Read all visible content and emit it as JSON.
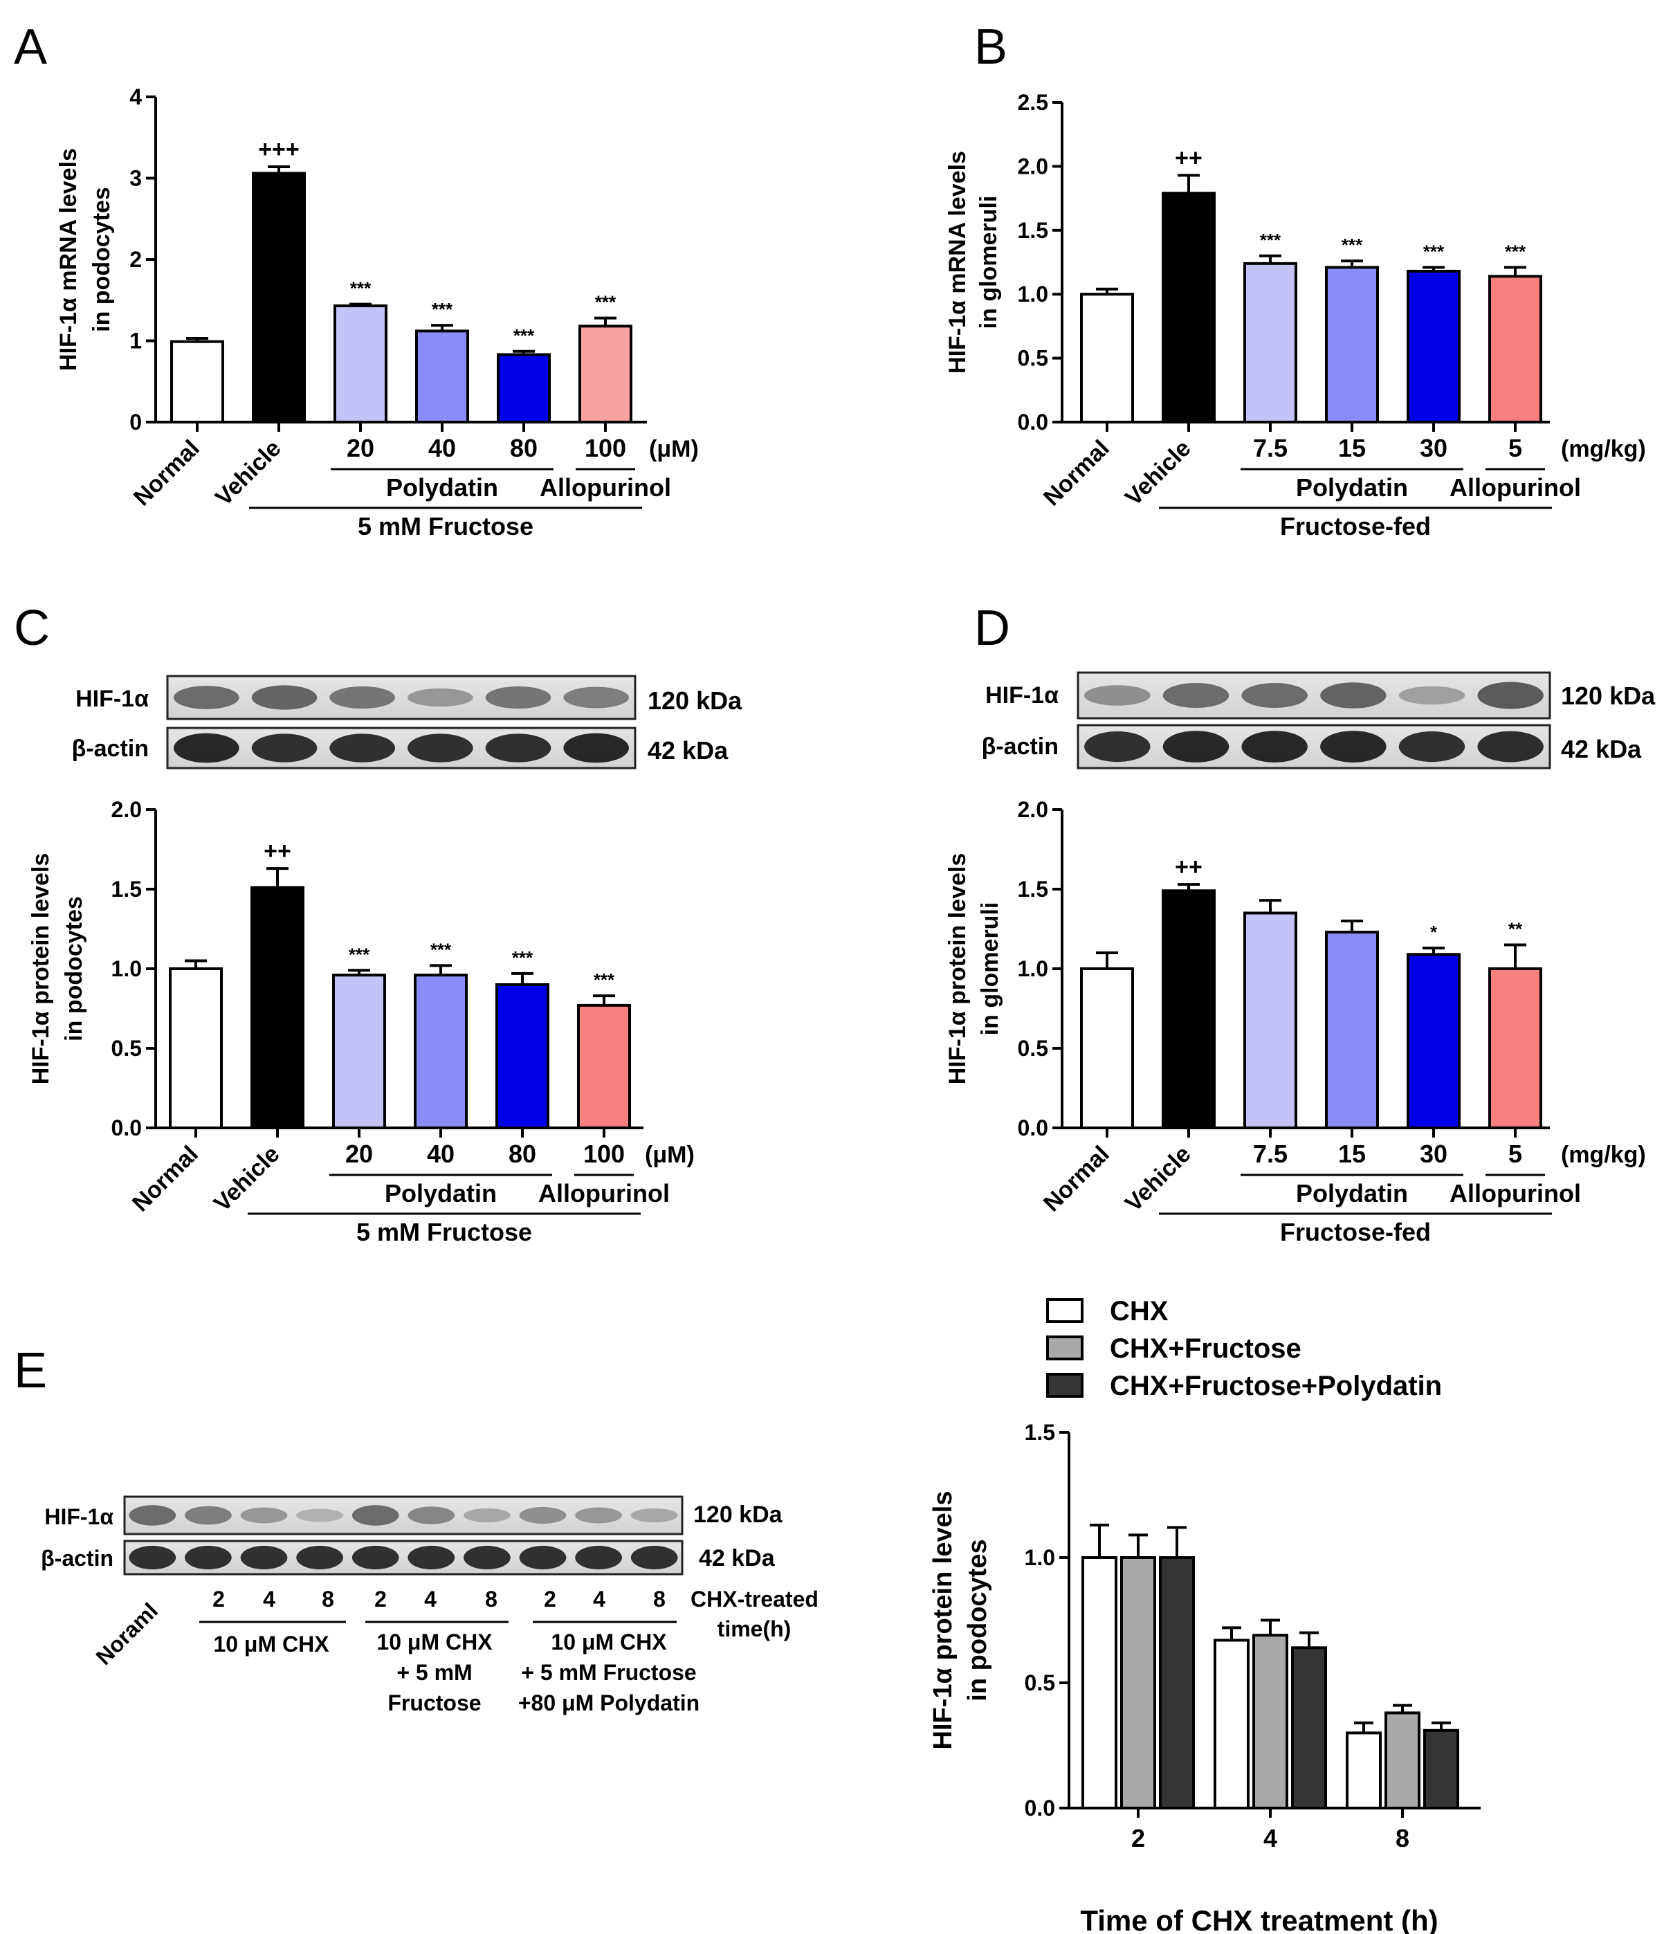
{
  "figure": {
    "panel_A": {
      "letter": "A",
      "chart_ref": 0,
      "doses": [
        "20",
        "40",
        "80",
        "100"
      ],
      "unit": "(μM)",
      "group1": "Polydatin",
      "group2": "Allopurinol",
      "treatment": "5 mM Fructose"
    },
    "panel_B": {
      "letter": "B",
      "chart_ref": 1,
      "doses": [
        "7.5",
        "15",
        "30",
        "5"
      ],
      "unit": "(mg/kg)",
      "group1": "Polydatin",
      "group2": "Allopurinol",
      "treatment": "Fructose-fed"
    },
    "panel_C": {
      "letter": "C",
      "chart_ref": 2,
      "blot_labels": [
        "HIF-1α",
        "β-actin"
      ],
      "blot_sizes": [
        "120 kDa",
        "42 kDa"
      ],
      "doses": [
        "20",
        "40",
        "80",
        "100"
      ],
      "unit": "(μM)",
      "group1": "Polydatin",
      "group2": "Allopurinol",
      "treatment": "5 mM Fructose"
    },
    "panel_D": {
      "letter": "D",
      "chart_ref": 3,
      "blot_labels": [
        "HIF-1α",
        "β-actin"
      ],
      "blot_sizes": [
        "120 kDa",
        "42 kDa"
      ],
      "doses": [
        "7.5",
        "15",
        "30",
        "5"
      ],
      "unit": "(mg/kg)",
      "group1": "Polydatin",
      "group2": "Allopurinol",
      "treatment": "Fructose-fed"
    },
    "panel_E": {
      "letter": "E",
      "chart_ref": 4,
      "blot_labels": [
        "HIF-1α",
        "β-actin"
      ],
      "blot_sizes": [
        "120 kDa",
        "42 kDa"
      ],
      "normal_label": "Noraml",
      "time_labels": [
        "2",
        "4",
        "8",
        "2",
        "4",
        "8",
        "2",
        "4",
        "8"
      ],
      "time_caption": [
        "CHX-treated",
        "time(h)"
      ],
      "group1": [
        "10 μM CHX"
      ],
      "group2": [
        "10 μM CHX",
        "+ 5 mM",
        "Fructose"
      ],
      "group3": [
        "10 μM CHX",
        "+ 5 mM Fructose",
        "+80 μM Polydatin"
      ]
    }
  },
  "chart_data": [
    {
      "type": "bar",
      "title": "",
      "ylabel": [
        "HIF-1α mRNA levels",
        "in podocytes"
      ],
      "ylim": [
        0,
        4
      ],
      "yticks": [
        "0",
        "1",
        "2",
        "3",
        "4"
      ],
      "categories": [
        "Normal",
        "Vehicle",
        "20",
        "40",
        "80",
        "100"
      ],
      "values": [
        0.99,
        3.06,
        1.43,
        1.12,
        0.83,
        1.18
      ],
      "errors": [
        0.04,
        0.08,
        0.02,
        0.07,
        0.04,
        0.1
      ],
      "annotations": [
        "",
        "+++",
        "***",
        "***",
        "***",
        "***"
      ],
      "colors": [
        "#ffffff",
        "#000000",
        "#c3c3f8",
        "#8c8cf8",
        "#0000e8",
        "#f9a2a2"
      ]
    },
    {
      "type": "bar",
      "title": "",
      "ylabel": [
        "HIF-1α mRNA levels",
        "in glomeruli"
      ],
      "ylim": [
        0,
        2.5
      ],
      "yticks": [
        "0.0",
        "0.5",
        "1.0",
        "1.5",
        "2.0",
        "2.5"
      ],
      "categories": [
        "Normal",
        "Vehicle",
        "7.5",
        "15",
        "30",
        "5"
      ],
      "values": [
        1.0,
        1.79,
        1.24,
        1.21,
        1.18,
        1.14
      ],
      "errors": [
        0.04,
        0.14,
        0.06,
        0.05,
        0.03,
        0.07
      ],
      "annotations": [
        "",
        "++",
        "***",
        "***",
        "***",
        "***"
      ],
      "colors": [
        "#ffffff",
        "#000000",
        "#c3c3f8",
        "#8c8cf8",
        "#0000e8",
        "#f88080"
      ]
    },
    {
      "type": "bar",
      "title": "",
      "ylabel": [
        "HIF-1α protein levels",
        "in podocytes"
      ],
      "ylim": [
        0,
        2.0
      ],
      "yticks": [
        "0.0",
        "0.5",
        "1.0",
        "1.5",
        "2.0"
      ],
      "categories": [
        "Normal",
        "Vehicle",
        "20",
        "40",
        "80",
        "100"
      ],
      "values": [
        1.0,
        1.51,
        0.96,
        0.96,
        0.9,
        0.77
      ],
      "errors": [
        0.05,
        0.12,
        0.03,
        0.06,
        0.07,
        0.06
      ],
      "annotations": [
        "",
        "++",
        "***",
        "***",
        "***",
        "***"
      ],
      "colors": [
        "#ffffff",
        "#000000",
        "#c3c3f8",
        "#8c8cf8",
        "#0000e8",
        "#f88080"
      ]
    },
    {
      "type": "bar",
      "title": "",
      "ylabel": [
        "HIF-1α protein levels",
        "in glomeruli"
      ],
      "ylim": [
        0,
        2.0
      ],
      "yticks": [
        "0.0",
        "0.5",
        "1.0",
        "1.5",
        "2.0"
      ],
      "categories": [
        "Normal",
        "Vehicle",
        "7.5",
        "15",
        "30",
        "5"
      ],
      "values": [
        1.0,
        1.49,
        1.35,
        1.23,
        1.09,
        1.0
      ],
      "errors": [
        0.1,
        0.04,
        0.08,
        0.07,
        0.04,
        0.15
      ],
      "annotations": [
        "",
        "++",
        "",
        "",
        "*",
        "**"
      ],
      "colors": [
        "#ffffff",
        "#000000",
        "#c3c3f8",
        "#8c8cf8",
        "#0000e8",
        "#f88080"
      ]
    },
    {
      "type": "bar",
      "title": "",
      "xlabel": "Time of CHX treatment (h)",
      "ylabel": [
        "HIF-1α protein levels",
        "in podocytes"
      ],
      "ylim": [
        0,
        1.5
      ],
      "yticks": [
        "0.0",
        "0.5",
        "1.0",
        "1.5"
      ],
      "categories": [
        "2",
        "4",
        "8"
      ],
      "series": [
        {
          "name": "CHX",
          "values": [
            1.0,
            0.67,
            0.3
          ],
          "errors": [
            0.13,
            0.05,
            0.04
          ],
          "color": "#ffffff"
        },
        {
          "name": "CHX+Fructose",
          "values": [
            1.0,
            0.69,
            0.38
          ],
          "errors": [
            0.09,
            0.06,
            0.03
          ],
          "color": "#a9a9a9"
        },
        {
          "name": "CHX+Fructose+Polydatin",
          "values": [
            1.0,
            0.64,
            0.31
          ],
          "errors": [
            0.12,
            0.06,
            0.03
          ],
          "color": "#353535"
        }
      ],
      "legend": "top-left"
    }
  ]
}
